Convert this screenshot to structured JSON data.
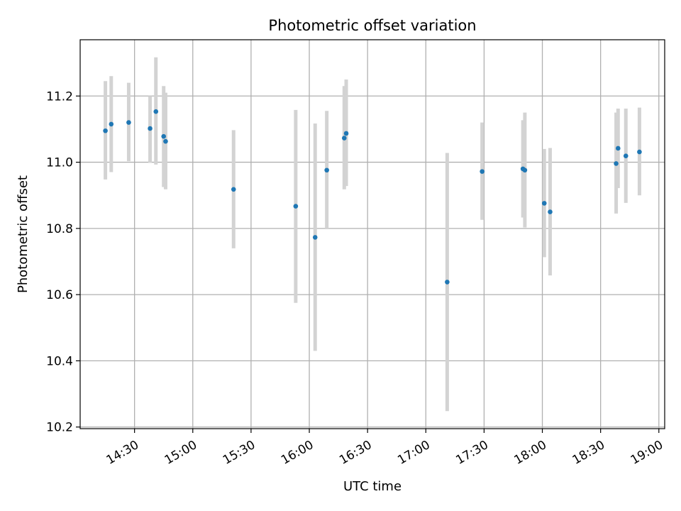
{
  "chart_data": {
    "type": "scatter",
    "title": "Photometric offset variation",
    "xlabel": "UTC time",
    "ylabel": "Photometric offset",
    "grid": true,
    "xlim": [
      "14:02",
      "19:03"
    ],
    "ylim": [
      10.195,
      11.37
    ],
    "x_ticks": [
      "14:30",
      "15:00",
      "15:30",
      "16:00",
      "16:30",
      "17:00",
      "17:30",
      "18:00",
      "18:30",
      "19:00"
    ],
    "y_ticks": [
      10.2,
      10.4,
      10.6,
      10.8,
      11.0,
      11.2
    ],
    "y_tick_labels": [
      "10.2",
      "10.4",
      "10.6",
      "10.8",
      "11.0",
      "11.2"
    ],
    "colors": {
      "marker": "#1f77b4",
      "errorbar": "#d3d3d3",
      "grid": "#b0b0b0"
    },
    "points": [
      {
        "t": "14:15",
        "y": 11.095,
        "lo": 10.948,
        "hi": 11.245
      },
      {
        "t": "14:18",
        "y": 11.115,
        "lo": 10.97,
        "hi": 11.26
      },
      {
        "t": "14:27",
        "y": 11.12,
        "lo": 11.003,
        "hi": 11.24
      },
      {
        "t": "14:38",
        "y": 11.102,
        "lo": 10.998,
        "hi": 11.2
      },
      {
        "t": "14:41",
        "y": 11.153,
        "lo": 10.993,
        "hi": 11.317
      },
      {
        "t": "14:45",
        "y": 11.078,
        "lo": 10.925,
        "hi": 11.23
      },
      {
        "t": "14:46",
        "y": 11.063,
        "lo": 10.918,
        "hi": 11.21
      },
      {
        "t": "15:21",
        "y": 10.918,
        "lo": 10.74,
        "hi": 11.097
      },
      {
        "t": "15:53",
        "y": 10.867,
        "lo": 10.575,
        "hi": 11.158
      },
      {
        "t": "16:03",
        "y": 10.773,
        "lo": 10.43,
        "hi": 11.117
      },
      {
        "t": "16:09",
        "y": 10.976,
        "lo": 10.8,
        "hi": 11.155
      },
      {
        "t": "16:18",
        "y": 11.073,
        "lo": 10.918,
        "hi": 11.23
      },
      {
        "t": "16:19",
        "y": 11.087,
        "lo": 10.928,
        "hi": 11.25
      },
      {
        "t": "17:11",
        "y": 10.638,
        "lo": 10.248,
        "hi": 11.028
      },
      {
        "t": "17:29",
        "y": 10.972,
        "lo": 10.826,
        "hi": 11.12
      },
      {
        "t": "17:50",
        "y": 10.98,
        "lo": 10.833,
        "hi": 11.127
      },
      {
        "t": "17:51",
        "y": 10.976,
        "lo": 10.803,
        "hi": 11.15
      },
      {
        "t": "18:01",
        "y": 10.876,
        "lo": 10.713,
        "hi": 11.04
      },
      {
        "t": "18:04",
        "y": 10.85,
        "lo": 10.658,
        "hi": 11.043
      },
      {
        "t": "18:38",
        "y": 10.996,
        "lo": 10.845,
        "hi": 11.15
      },
      {
        "t": "18:39",
        "y": 11.042,
        "lo": 10.922,
        "hi": 11.162
      },
      {
        "t": "18:43",
        "y": 11.019,
        "lo": 10.877,
        "hi": 11.162
      },
      {
        "t": "18:50",
        "y": 11.031,
        "lo": 10.9,
        "hi": 11.165
      }
    ]
  }
}
